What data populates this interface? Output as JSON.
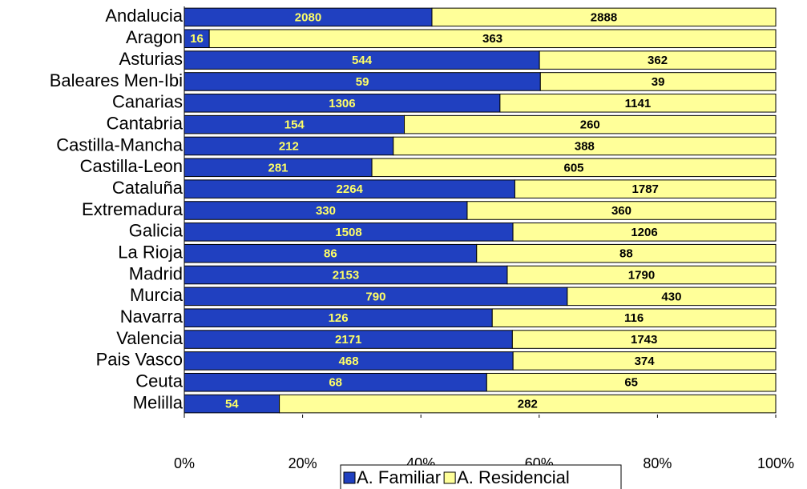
{
  "chart_data": {
    "type": "bar",
    "orientation": "horizontal",
    "stacked": "percent",
    "categories": [
      "Andalucia",
      "Aragon",
      "Asturias",
      "Baleares Men-Ibi",
      "Canarias",
      "Cantabria",
      "Castilla-Mancha",
      "Castilla-Leon",
      "Cataluña",
      "Extremadura",
      "Galicia",
      "La Rioja",
      "Madrid",
      "Murcia",
      "Navarra",
      "Valencia",
      "Pais Vasco",
      "Ceuta",
      "Melilla"
    ],
    "series": [
      {
        "name": "A. Familiar",
        "color": "#2040c0",
        "label_color": "#ffff66",
        "values": [
          2080,
          16,
          544,
          59,
          1306,
          154,
          212,
          281,
          2264,
          330,
          1508,
          86,
          2153,
          790,
          126,
          2171,
          468,
          68,
          54
        ]
      },
      {
        "name": "A. Residencial",
        "color": "#ffff99",
        "label_color": "#000000",
        "values": [
          2888,
          363,
          362,
          39,
          1141,
          260,
          388,
          605,
          1787,
          360,
          1206,
          88,
          1790,
          430,
          116,
          1743,
          374,
          65,
          282
        ]
      }
    ],
    "xlim": [
      0,
      100
    ],
    "xticks": [
      {
        "value": 0,
        "label": "0%"
      },
      {
        "value": 20,
        "label": "20%"
      },
      {
        "value": 40,
        "label": "40%"
      },
      {
        "value": 60,
        "label": "60%"
      },
      {
        "value": 80,
        "label": "80%"
      },
      {
        "value": 100,
        "label": "100%"
      }
    ],
    "legend": "bottom"
  }
}
